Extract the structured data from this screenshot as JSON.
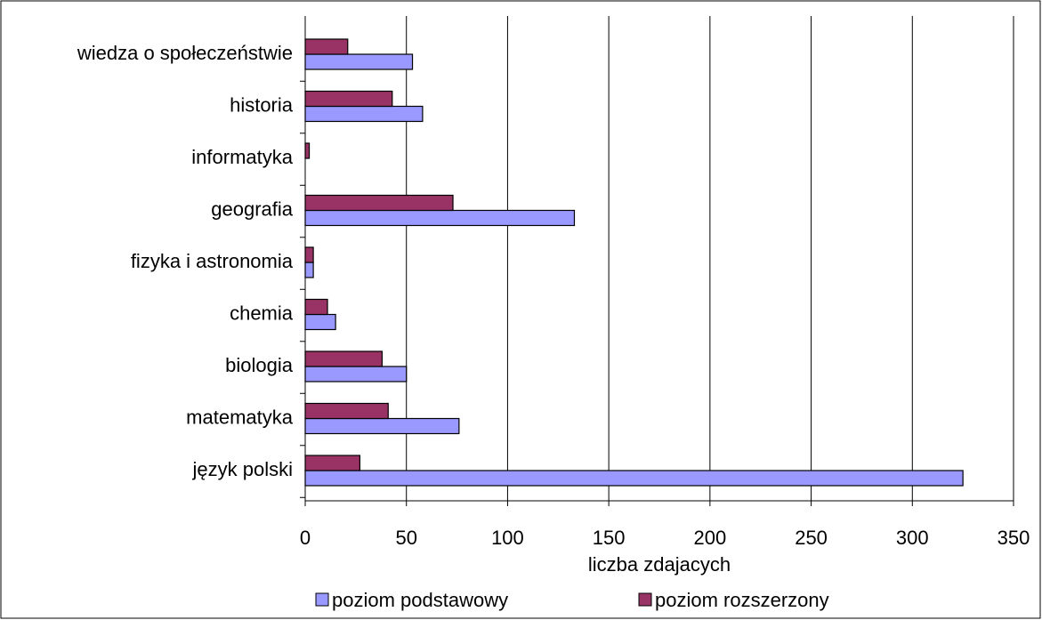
{
  "chart_data": {
    "type": "hbar",
    "xlabel": "liczba zdajacych",
    "categories": [
      "język polski",
      "matematyka",
      "biologia",
      "chemia",
      "fizyka i astronomia",
      "geografia",
      "informatyka",
      "historia",
      "wiedza o społeczeństwie"
    ],
    "series": [
      {
        "name": "poziom podstawowy",
        "color": "#9999ff",
        "values": [
          325,
          76,
          50,
          15,
          4,
          133,
          0,
          58,
          53
        ]
      },
      {
        "name": "poziom rozszerzony",
        "color": "#993366",
        "values": [
          27,
          41,
          38,
          11,
          4,
          73,
          2,
          43,
          21
        ]
      }
    ],
    "xlim": [
      0,
      350
    ],
    "xticks": [
      0,
      50,
      100,
      150,
      200,
      250,
      300,
      350
    ],
    "grid": true
  }
}
